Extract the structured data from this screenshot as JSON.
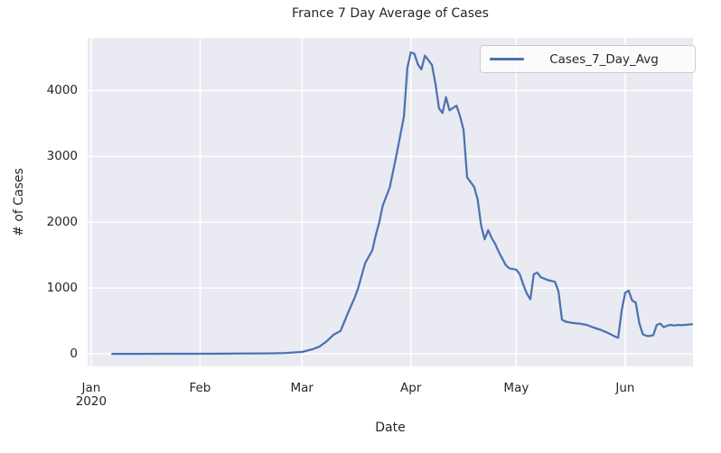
{
  "figure": {
    "title": "France 7 Day Average of Cases",
    "xlabel": "Date",
    "ylabel": "# of Cases"
  },
  "colors": {
    "line": "#4c72b0",
    "plot_background": "#eaeaf2",
    "grid": "#ffffff",
    "text": "#262626",
    "legend_border": "#cccccc"
  },
  "chart_data": {
    "type": "line",
    "title": "France 7 Day Average of Cases",
    "xlabel": "Date",
    "ylabel": "# of Cases",
    "grid": true,
    "legend_position": "upper right",
    "x_unit": "days since 2020-01-01",
    "xlim_days": [
      -1,
      171.3
    ],
    "ylim": [
      -190,
      4800
    ],
    "xticks": [
      {
        "label": "Jan",
        "sublabel": "2020",
        "day": 0
      },
      {
        "label": "Feb",
        "sublabel": "",
        "day": 31
      },
      {
        "label": "Mar",
        "sublabel": "",
        "day": 60
      },
      {
        "label": "Apr",
        "sublabel": "",
        "day": 91
      },
      {
        "label": "May",
        "sublabel": "",
        "day": 121
      },
      {
        "label": "Jun",
        "sublabel": "",
        "day": 152
      }
    ],
    "yticks": [
      0,
      1000,
      2000,
      3000,
      4000
    ],
    "series": [
      {
        "name": "Cases_7_Day_Avg",
        "color": "#4c72b0",
        "points": [
          [
            6,
            0
          ],
          [
            14,
            1
          ],
          [
            24,
            2
          ],
          [
            31,
            2
          ],
          [
            41,
            4
          ],
          [
            50,
            8
          ],
          [
            55,
            12
          ],
          [
            60,
            30
          ],
          [
            63,
            70
          ],
          [
            65,
            110
          ],
          [
            67,
            190
          ],
          [
            69,
            290
          ],
          [
            71,
            350
          ],
          [
            73,
            610
          ],
          [
            75,
            850
          ],
          [
            76,
            1000
          ],
          [
            78,
            1380
          ],
          [
            80,
            1570
          ],
          [
            81,
            1800
          ],
          [
            82,
            2000
          ],
          [
            83,
            2250
          ],
          [
            85,
            2530
          ],
          [
            87,
            3050
          ],
          [
            89,
            3600
          ],
          [
            90,
            4350
          ],
          [
            91,
            4580
          ],
          [
            92,
            4560
          ],
          [
            93,
            4400
          ],
          [
            94,
            4320
          ],
          [
            95,
            4530
          ],
          [
            96,
            4460
          ],
          [
            97,
            4390
          ],
          [
            98,
            4100
          ],
          [
            99,
            3730
          ],
          [
            100,
            3660
          ],
          [
            101,
            3900
          ],
          [
            102,
            3700
          ],
          [
            104,
            3770
          ],
          [
            105,
            3610
          ],
          [
            106,
            3400
          ],
          [
            107,
            2680
          ],
          [
            109,
            2540
          ],
          [
            110,
            2350
          ],
          [
            111,
            1950
          ],
          [
            112,
            1740
          ],
          [
            113,
            1880
          ],
          [
            114,
            1760
          ],
          [
            115,
            1670
          ],
          [
            116,
            1550
          ],
          [
            118,
            1350
          ],
          [
            119,
            1300
          ],
          [
            121,
            1280
          ],
          [
            122,
            1210
          ],
          [
            123,
            1050
          ],
          [
            124,
            915
          ],
          [
            125,
            830
          ],
          [
            126,
            1210
          ],
          [
            127,
            1235
          ],
          [
            128,
            1165
          ],
          [
            130,
            1120
          ],
          [
            132,
            1095
          ],
          [
            133,
            950
          ],
          [
            134,
            520
          ],
          [
            135,
            490
          ],
          [
            137,
            470
          ],
          [
            139,
            460
          ],
          [
            141,
            440
          ],
          [
            143,
            400
          ],
          [
            145,
            365
          ],
          [
            147,
            320
          ],
          [
            149,
            265
          ],
          [
            150,
            245
          ],
          [
            151,
            660
          ],
          [
            152,
            930
          ],
          [
            153,
            960
          ],
          [
            154,
            810
          ],
          [
            155,
            780
          ],
          [
            156,
            470
          ],
          [
            157,
            300
          ],
          [
            158,
            275
          ],
          [
            159,
            270
          ],
          [
            160,
            285
          ],
          [
            161,
            440
          ],
          [
            162,
            460
          ],
          [
            163,
            405
          ],
          [
            164,
            430
          ],
          [
            165,
            440
          ],
          [
            166,
            430
          ],
          [
            167,
            440
          ],
          [
            168,
            435
          ],
          [
            169,
            440
          ],
          [
            170,
            445
          ],
          [
            171,
            450
          ]
        ]
      }
    ]
  }
}
